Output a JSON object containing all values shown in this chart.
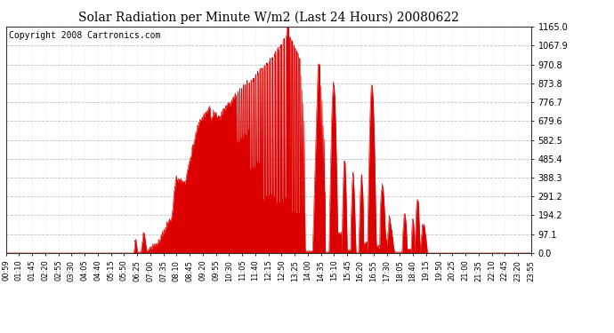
{
  "title": "Solar Radiation per Minute W/m2 (Last 24 Hours) 20080622",
  "copyright": "Copyright 2008 Cartronics.com",
  "fill_color": "#dd0000",
  "bg_color": "#ffffff",
  "grid_color": "#bbbbbb",
  "ymin": 0.0,
  "ymax": 1165.0,
  "yticks": [
    0.0,
    97.1,
    194.2,
    291.2,
    388.3,
    485.4,
    582.5,
    679.6,
    776.7,
    873.8,
    970.8,
    1067.9,
    1165.0
  ],
  "ytick_labels": [
    "0.0",
    "97.1",
    "194.2",
    "291.2",
    "388.3",
    "485.4",
    "582.5",
    "679.6",
    "776.7",
    "873.8",
    "970.8",
    "1067.9",
    "1165.0"
  ],
  "xtick_labels": [
    "00:59",
    "01:10",
    "01:45",
    "02:20",
    "02:55",
    "03:30",
    "04:05",
    "04:40",
    "05:15",
    "05:50",
    "06:25",
    "07:00",
    "07:35",
    "08:10",
    "08:45",
    "09:20",
    "09:55",
    "10:30",
    "11:05",
    "11:40",
    "12:15",
    "12:50",
    "13:25",
    "14:00",
    "14:35",
    "15:10",
    "15:45",
    "16:20",
    "16:55",
    "17:30",
    "18:05",
    "18:40",
    "19:15",
    "19:50",
    "20:25",
    "21:00",
    "21:35",
    "22:10",
    "22:45",
    "23:20",
    "23:55"
  ],
  "n_points": 1440
}
